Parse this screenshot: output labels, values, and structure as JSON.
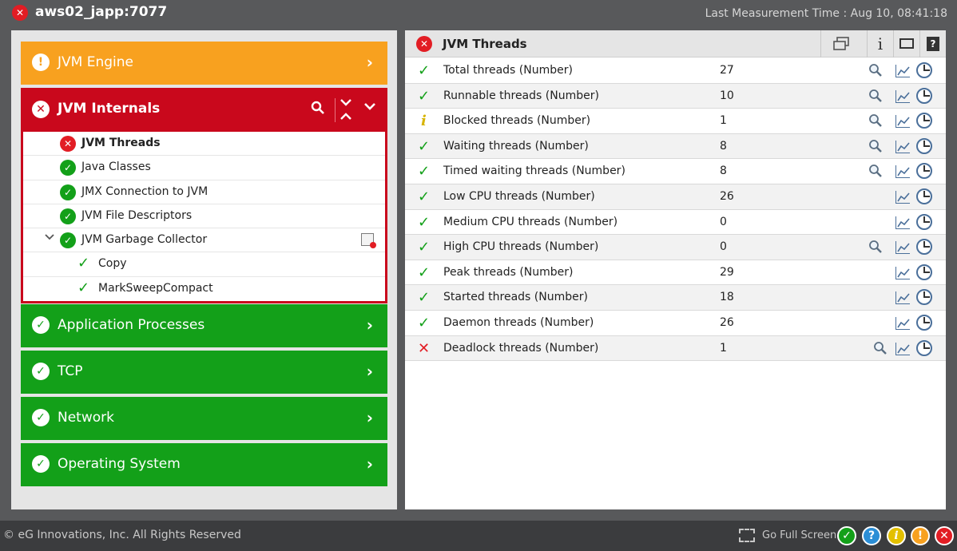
{
  "header": {
    "title_icon": "error-x-icon",
    "title": "aws02_japp:7077",
    "last_measurement": "Last Measurement Time : Aug 10, 08:41:18"
  },
  "layers": {
    "jvm_engine": {
      "label": "JVM Engine",
      "status": "warning",
      "color": "#f8a11f"
    },
    "jvm_internals": {
      "label": "JVM Internals",
      "status": "critical",
      "color": "#c9081c"
    },
    "application_processes": {
      "label": "Application Processes",
      "status": "ok",
      "color": "#13a019"
    },
    "tcp": {
      "label": "TCP",
      "status": "ok",
      "color": "#13a019"
    },
    "network": {
      "label": "Network",
      "status": "ok",
      "color": "#13a019"
    },
    "operating_system": {
      "label": "Operating System",
      "status": "ok",
      "color": "#13a019"
    }
  },
  "tests": [
    {
      "label": "JVM Threads",
      "status": "critical"
    },
    {
      "label": "Java Classes",
      "status": "ok"
    },
    {
      "label": "JMX Connection to JVM",
      "status": "ok"
    },
    {
      "label": "JVM File Descriptors",
      "status": "ok"
    },
    {
      "label": "JVM Garbage Collector",
      "status": "ok"
    },
    {
      "label": "Copy",
      "status": "ok"
    },
    {
      "label": "MarkSweepCompact",
      "status": "ok"
    }
  ],
  "detail": {
    "title": "JVM Threads",
    "info_label": "i",
    "help_label": "?",
    "measures": [
      {
        "name": "Total threads (Number)",
        "value": "27",
        "status": "ok"
      },
      {
        "name": "Runnable threads (Number)",
        "value": "10",
        "status": "ok"
      },
      {
        "name": "Blocked threads (Number)",
        "value": "1",
        "status": "info"
      },
      {
        "name": "Waiting threads (Number)",
        "value": "8",
        "status": "ok"
      },
      {
        "name": "Timed waiting threads (Number)",
        "value": "8",
        "status": "ok"
      },
      {
        "name": "Low CPU threads (Number)",
        "value": "26",
        "status": "ok"
      },
      {
        "name": "Medium CPU threads (Number)",
        "value": "0",
        "status": "ok"
      },
      {
        "name": "High CPU threads (Number)",
        "value": "0",
        "status": "ok"
      },
      {
        "name": "Peak threads (Number)",
        "value": "29",
        "status": "ok"
      },
      {
        "name": "Started threads (Number)",
        "value": "18",
        "status": "ok"
      },
      {
        "name": "Daemon threads (Number)",
        "value": "26",
        "status": "ok"
      },
      {
        "name": "Deadlock threads (Number)",
        "value": "1",
        "status": "critical"
      }
    ]
  },
  "footer": {
    "copyright": "© eG Innovations, Inc. All Rights Reserved",
    "full_screen": "Go Full Screen"
  }
}
